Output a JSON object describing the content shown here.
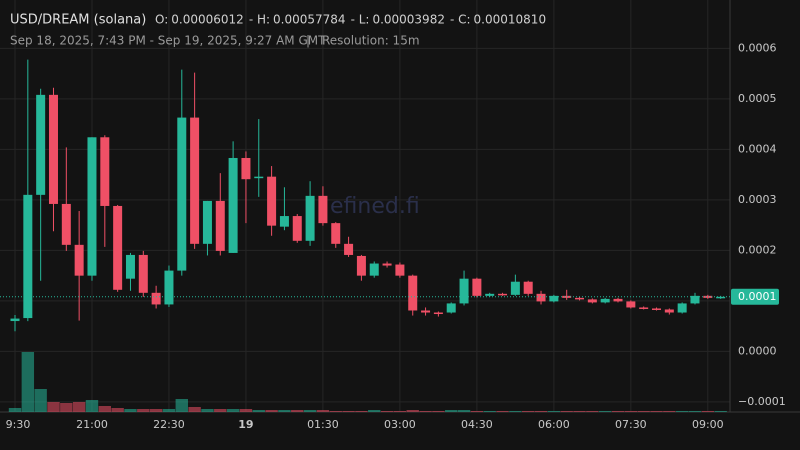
{
  "chart_data": {
    "type": "candlestick",
    "title": "USD/DREAM (solana)",
    "ohlc_header": [
      {
        "label": "O:",
        "value": "0.00006012"
      },
      {
        "label": "- H:",
        "value": "0.00057784"
      },
      {
        "label": "- L:",
        "value": "0.00003982"
      },
      {
        "label": "- C:",
        "value": "0.00010810"
      }
    ],
    "subtitle": "Sep 18, 2025, 7:43 PM - Sep 19, 2025, 9:27 AM GMT",
    "separator": "|",
    "resolution": "Resolution: 15m",
    "watermark": "efined.fi",
    "categories": [
      "9:30",
      null,
      null,
      null,
      null,
      null,
      "21:00",
      null,
      null,
      null,
      null,
      null,
      "22:30",
      null,
      null,
      null,
      null,
      null,
      "19",
      null,
      null,
      null,
      null,
      null,
      "01:30",
      null,
      null,
      null,
      null,
      null,
      "03:00",
      null,
      null,
      null,
      null,
      null,
      "04:30",
      null,
      null,
      null,
      null,
      null,
      "06:00",
      null,
      null,
      null,
      null,
      null,
      "07:30",
      null,
      null,
      null,
      null,
      null,
      "09:00",
      null
    ],
    "open": [
      6.012e-05,
      6.6e-05,
      0.00031,
      0.000508,
      0.000292,
      0.000211,
      0.00015,
      0.000424,
      0.000288,
      0.000144,
      0.000191,
      0.000116,
      9.3e-05,
      0.00016,
      0.000463,
      0.000213,
      0.000298,
      0.000195,
      0.000383,
      0.000344,
      0.000346,
      0.000247,
      0.000268,
      0.000219,
      0.000308,
      0.000254,
      0.000213,
      0.000189,
      0.00015,
      0.000174,
      0.000172,
      0.00015,
      8.1e-05,
      7.7e-05,
      7.7e-05,
      9.5e-05,
      0.000144,
      0.00011,
      0.000114,
      0.000112,
      0.000138,
      0.000114,
      9.9e-05,
      0.00011,
      0.000106,
      0.000103,
      9.7e-05,
      0.000104,
      9.9e-05,
      8.7e-05,
      8.5e-05,
      8.3e-05,
      7.7e-05,
      9.5e-05,
      0.00011,
      0.000106
    ],
    "high": [
      7.2e-05,
      0.00057784,
      0.00052,
      0.000522,
      0.000404,
      0.000278,
      0.000424,
      0.000428,
      0.00029,
      0.000195,
      0.000199,
      0.00013,
      0.00017,
      0.000558,
      0.000552,
      0.000298,
      0.000353,
      0.000416,
      0.000396,
      0.00046,
      0.000367,
      0.000325,
      0.000272,
      0.000337,
      0.000327,
      0.000256,
      0.000227,
      0.000191,
      0.000178,
      0.000178,
      0.000176,
      0.000152,
      8.7e-05,
      7.9e-05,
      9.7e-05,
      0.00016,
      0.000146,
      0.000116,
      0.000116,
      0.000152,
      0.00014,
      0.00012,
      0.000112,
      0.000122,
      0.000108,
      0.000105,
      0.000106,
      0.000106,
      0.000101,
      8.9e-05,
      8.7e-05,
      8.5e-05,
      9.7e-05,
      0.000116,
      0.000112,
      0.00011
    ],
    "low": [
      3.982e-05,
      6e-05,
      0.00014,
      0.000238,
      0.000199,
      6.1e-05,
      0.00014,
      0.000207,
      0.000118,
      0.00012,
      0.000108,
      8.5e-05,
      8.8e-05,
      0.00015,
      0.000203,
      0.00019,
      0.00019,
      0.000195,
      0.000254,
      0.000306,
      0.000229,
      0.00024,
      0.000215,
      0.000209,
      0.000249,
      0.000205,
      0.000187,
      0.00014,
      0.000146,
      0.000166,
      0.000146,
      7.1e-05,
      7.1e-05,
      6.9e-05,
      7.5e-05,
      9.1e-05,
      0.000107,
      0.000108,
      0.00011,
      0.00011,
      0.00011,
      9.3e-05,
      9.7e-05,
      0.000102,
      0.000101,
      9.5e-05,
      9.5e-05,
      9.7e-05,
      8.5e-05,
      8.3e-05,
      8.1e-05,
      7.3e-05,
      7.5e-05,
      9.3e-05,
      0.000104,
      0.000104
    ],
    "close": [
      6.5e-05,
      0.00031,
      0.000508,
      0.000292,
      0.000211,
      0.00015,
      0.000424,
      0.000288,
      0.000122,
      0.000191,
      0.000116,
      9.3e-05,
      0.00016,
      0.000463,
      0.000213,
      0.000298,
      0.000199,
      0.000383,
      0.000341,
      0.000346,
      0.000249,
      0.000268,
      0.000219,
      0.000308,
      0.000254,
      0.000213,
      0.000191,
      0.00015,
      0.000174,
      0.00017,
      0.00015,
      8.1e-05,
      7.7e-05,
      7.5e-05,
      9.5e-05,
      0.000144,
      0.00011,
      0.000114,
      0.000112,
      0.000138,
      0.000114,
      9.9e-05,
      0.00011,
      0.000106,
      0.000103,
      9.7e-05,
      0.000104,
      9.9e-05,
      8.7e-05,
      8.5e-05,
      8.3e-05,
      7.7e-05,
      9.5e-05,
      0.00011,
      0.000106,
      0.0001081
    ],
    "volume": [
      4,
      60,
      23,
      10,
      9,
      10,
      12,
      6,
      4,
      3,
      3,
      3,
      3,
      13,
      5,
      3,
      3,
      3,
      3,
      2,
      2,
      2,
      2,
      2,
      2,
      1,
      1,
      1,
      2,
      1,
      1,
      2,
      1,
      1,
      2,
      2,
      1,
      1,
      1,
      1,
      1,
      1,
      1,
      1,
      1,
      1,
      1,
      1,
      1,
      1,
      1,
      1,
      1,
      1,
      1,
      1
    ],
    "up_color": "#26b89a",
    "down_color": "#ef5066",
    "ylim": [
      -0.00012,
      0.00068
    ],
    "yticks": [
      {
        "value": -0.0001,
        "label": "−0.0001"
      },
      {
        "value": 0,
        "label": "0.0000"
      },
      0.0001,
      0.0002,
      0.0003,
      0.0004,
      0.0005,
      0.0006
    ],
    "last_price": {
      "value": 0.0001081,
      "label": "0.0001"
    },
    "grid": true
  }
}
